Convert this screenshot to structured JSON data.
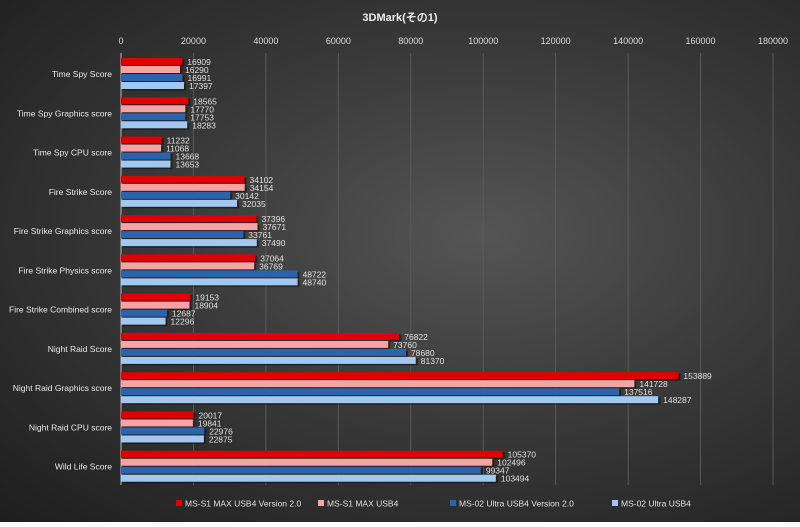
{
  "chart_data": {
    "type": "bar",
    "orientation": "horizontal",
    "title": "3DMark(その1)",
    "xlabel": "",
    "ylabel": "",
    "xlim": [
      0,
      180000
    ],
    "xticks": [
      0,
      20000,
      40000,
      60000,
      80000,
      100000,
      120000,
      140000,
      160000,
      180000
    ],
    "xtick_labels": [
      "0",
      "20000",
      "40000",
      "60000",
      "80000",
      "100000",
      "120000",
      "140000",
      "160000",
      "180000"
    ],
    "grid": true,
    "legend_position": "bottom",
    "categories": [
      "Time Spy Score",
      "Time Spy Graphics score",
      "Time Spy CPU score",
      "Fire Strike Score",
      "Fire Strike Graphics score",
      "Fire Strike Physics score",
      "Fire Strike Combined score",
      "Night Raid Score",
      "Night Raid Graphics score",
      "Night Raid CPU score",
      "Wild Life Score"
    ],
    "series": [
      {
        "name": "MS-S1 MAX USB4 Version 2.0",
        "color": "#e00000",
        "values": [
          16909,
          18565,
          11232,
          34102,
          37396,
          37064,
          19153,
          76822,
          153889,
          20017,
          105370
        ]
      },
      {
        "name": "MS-S1 MAX USB4",
        "color": "#f5a3a3",
        "values": [
          16290,
          17770,
          11068,
          34154,
          37671,
          36769,
          18904,
          73760,
          141728,
          19841,
          102496
        ]
      },
      {
        "name": "MS-02 Ultra USB4 Version 2.0",
        "color": "#2b63ad",
        "values": [
          16991,
          17753,
          13668,
          30142,
          33761,
          48722,
          12687,
          78680,
          137516,
          22976,
          99347
        ]
      },
      {
        "name": "MS-02 Ultra USB4",
        "color": "#a3c8f0",
        "values": [
          17397,
          18283,
          13653,
          32035,
          37490,
          48740,
          12296,
          81370,
          148287,
          22875,
          103494
        ]
      }
    ]
  }
}
